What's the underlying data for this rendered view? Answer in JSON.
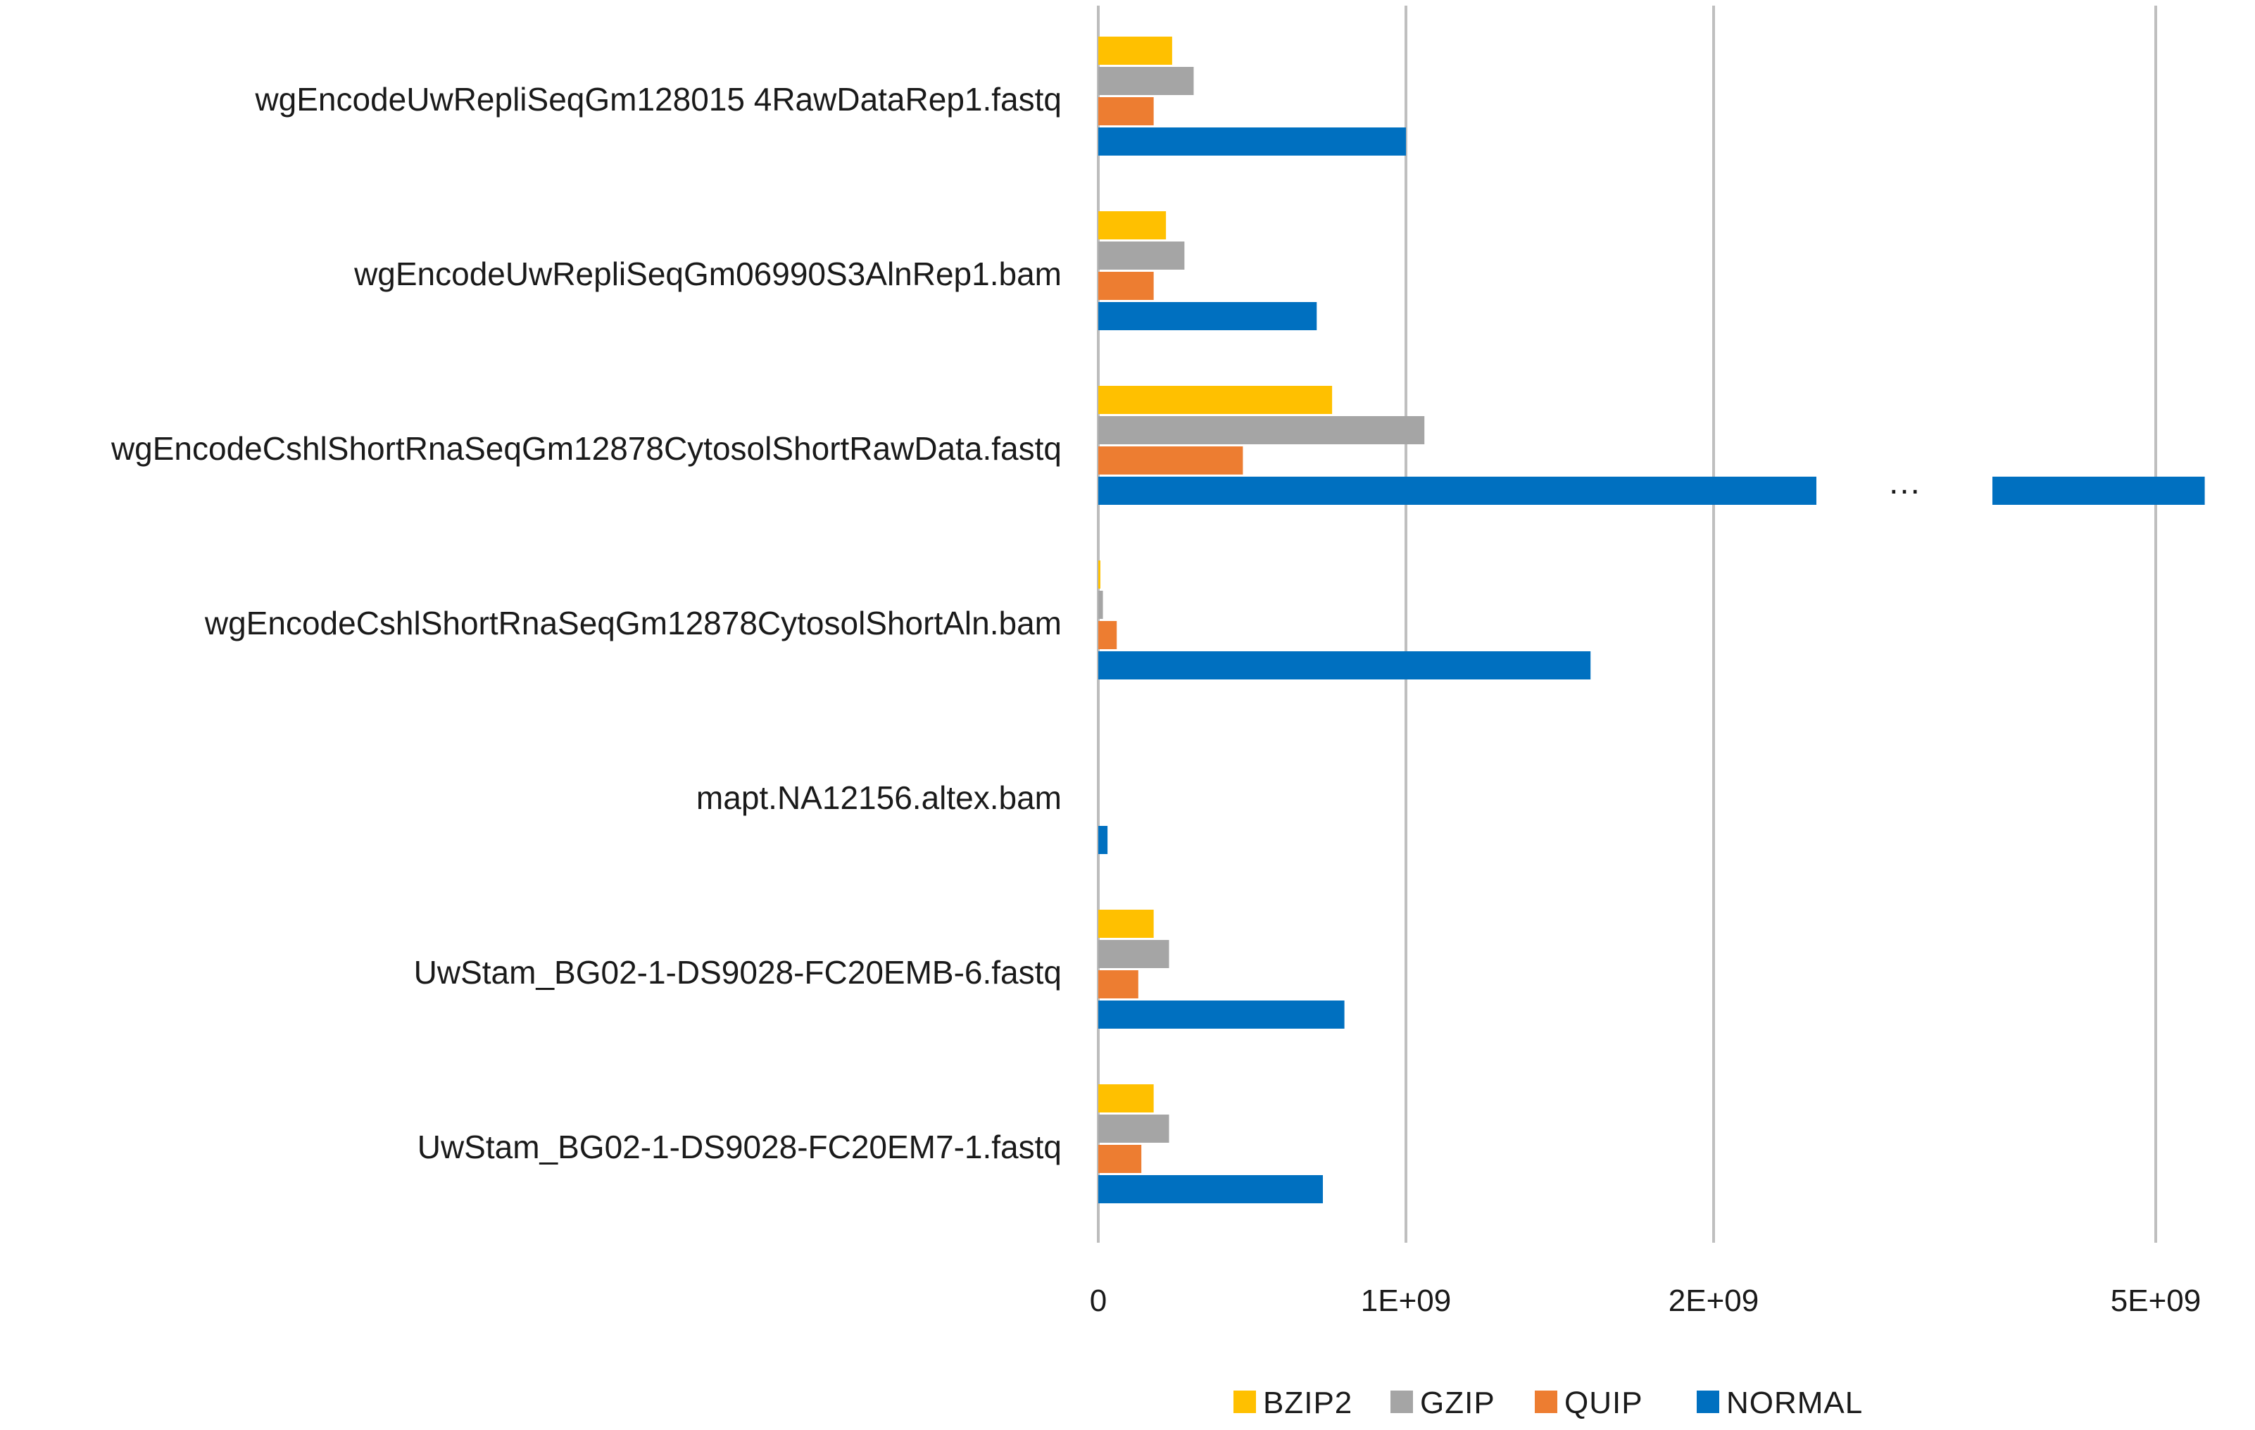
{
  "chart_data": {
    "type": "bar",
    "orientation": "horizontal",
    "title": "",
    "xlabel": "",
    "ylabel": "",
    "axis_break": {
      "after": "2E+09",
      "marker": "…"
    },
    "ticks": [
      {
        "value": 0,
        "label": "0"
      },
      {
        "value": 1000000000,
        "label": "1E+09"
      },
      {
        "value": 2000000000,
        "label": "2E+09"
      },
      {
        "value": 5000000000,
        "label": "5E+09"
      }
    ],
    "categories": [
      "wgEncodeUwRepliSeqGm128015 4RawDataRep1.fastq",
      "wgEncodeUwRepliSeqGm06990S3AlnRep1.bam",
      "wgEncodeCshlShortRnaSeqGm12878CytosolShortRawData.fastq",
      "wgEncodeCshlShortRnaSeqGm12878CytosolShortAln.bam",
      "mapt.NA12156.altex.bam",
      "UwStam_BG02-1-DS9028-FC20EMB-6.fastq",
      "UwStam_BG02-1-DS9028-FC20EM7-1.fastq"
    ],
    "series": [
      {
        "name": "BZIP2",
        "color": "#ffc000",
        "values": [
          240000000,
          220000000,
          760000000,
          5000000,
          0,
          180000000,
          180000000
        ]
      },
      {
        "name": "GZIP",
        "color": "#a5a5a5",
        "values": [
          310000000,
          280000000,
          1060000000,
          15000000,
          0,
          230000000,
          230000000
        ]
      },
      {
        "name": "QUIP",
        "color": "#ed7d31",
        "values": [
          180000000,
          180000000,
          470000000,
          60000000,
          0,
          130000000,
          140000000
        ]
      },
      {
        "name": "NORMAL",
        "color": "#0070c0",
        "values": [
          1000000000,
          710000000,
          5300000000,
          1600000000,
          30000000,
          800000000,
          730000000
        ]
      }
    ],
    "legend": {
      "position": "bottom",
      "labels": [
        "BZIP2",
        "GZIP",
        "QUIP",
        "NORMAL"
      ]
    },
    "grid": true
  }
}
